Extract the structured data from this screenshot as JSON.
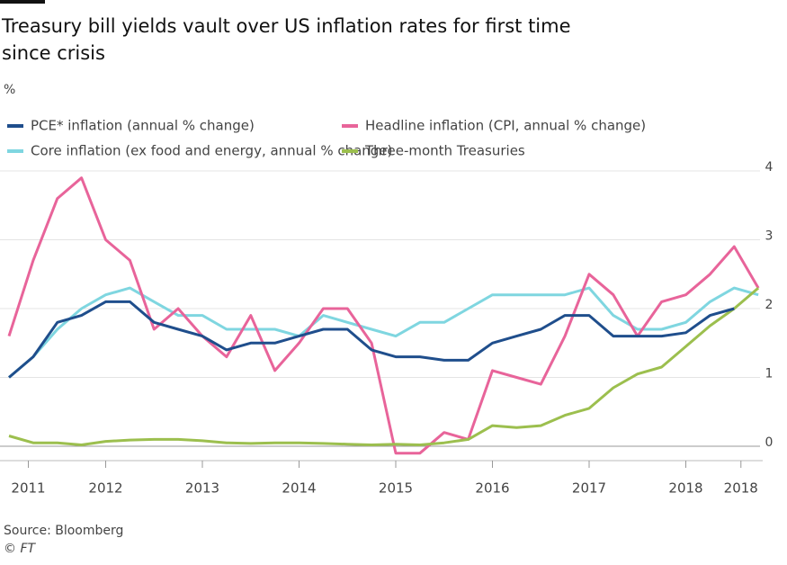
{
  "chart_data": {
    "type": "line",
    "title": "Treasury bill yields vault over US inflation rates for first time since crisis",
    "y_axis_label": "%",
    "source": "Source: Bloomberg",
    "credit": "© FT",
    "x": [
      2011,
      2011.25,
      2011.5,
      2011.75,
      2012,
      2012.25,
      2012.5,
      2012.75,
      2013,
      2013.25,
      2013.5,
      2013.75,
      2014,
      2014.25,
      2014.5,
      2014.75,
      2015,
      2015.25,
      2015.5,
      2015.75,
      2016,
      2016.25,
      2016.5,
      2016.75,
      2017,
      2017.25,
      2017.5,
      2017.75,
      2018,
      2018.25,
      2018.5,
      2018.75
    ],
    "series": [
      {
        "name": "PCE* inflation (annual % change)",
        "color": "#1f4e8c",
        "values": [
          1.0,
          1.3,
          1.8,
          1.9,
          2.1,
          2.1,
          1.8,
          1.7,
          1.6,
          1.4,
          1.5,
          1.5,
          1.6,
          1.7,
          1.7,
          1.4,
          1.3,
          1.3,
          1.25,
          1.25,
          1.5,
          1.6,
          1.7,
          1.9,
          1.9,
          1.6,
          1.6,
          1.6,
          1.65,
          1.9,
          2.0,
          null
        ]
      },
      {
        "name": "Headline inflation (CPI, annual % change)",
        "color": "#e8649a",
        "values": [
          1.6,
          2.7,
          3.6,
          3.9,
          3.0,
          2.7,
          1.7,
          2.0,
          1.6,
          1.3,
          1.9,
          1.1,
          1.5,
          2.0,
          2.0,
          1.5,
          -0.1,
          -0.1,
          0.2,
          0.1,
          1.1,
          1.0,
          0.9,
          1.6,
          2.5,
          2.2,
          1.6,
          2.1,
          2.2,
          2.5,
          2.9,
          2.3
        ]
      },
      {
        "name": "Core inflation (ex food and energy, annual % change)",
        "color": "#7fd6e0",
        "values": [
          1.0,
          1.3,
          1.7,
          2.0,
          2.2,
          2.3,
          2.1,
          1.9,
          1.9,
          1.7,
          1.7,
          1.7,
          1.6,
          1.9,
          1.8,
          1.7,
          1.6,
          1.8,
          1.8,
          2.0,
          2.2,
          2.2,
          2.2,
          2.2,
          2.3,
          1.9,
          1.7,
          1.7,
          1.8,
          2.1,
          2.3,
          2.2
        ]
      },
      {
        "name": "Three-month Treasuries",
        "color": "#9cbf4e",
        "values": [
          0.15,
          0.05,
          0.05,
          0.02,
          0.07,
          0.09,
          0.1,
          0.1,
          0.08,
          0.05,
          0.04,
          0.05,
          0.05,
          0.04,
          0.03,
          0.02,
          0.03,
          0.02,
          0.05,
          0.1,
          0.3,
          0.27,
          0.3,
          0.45,
          0.55,
          0.85,
          1.05,
          1.15,
          1.45,
          1.75,
          2.0,
          2.3
        ]
      }
    ],
    "xlim": [
      2011,
      2018.8
    ],
    "xticks": [
      {
        "value": 2011.2,
        "label": "2011"
      },
      2012,
      2013,
      2014,
      2015,
      2016,
      2017,
      2018,
      {
        "value": 2018.57,
        "label": "2018"
      }
    ],
    "ylim": [
      -0.2,
      4.1
    ],
    "yticks": [
      0,
      1,
      2,
      3,
      4
    ],
    "grid": true
  }
}
